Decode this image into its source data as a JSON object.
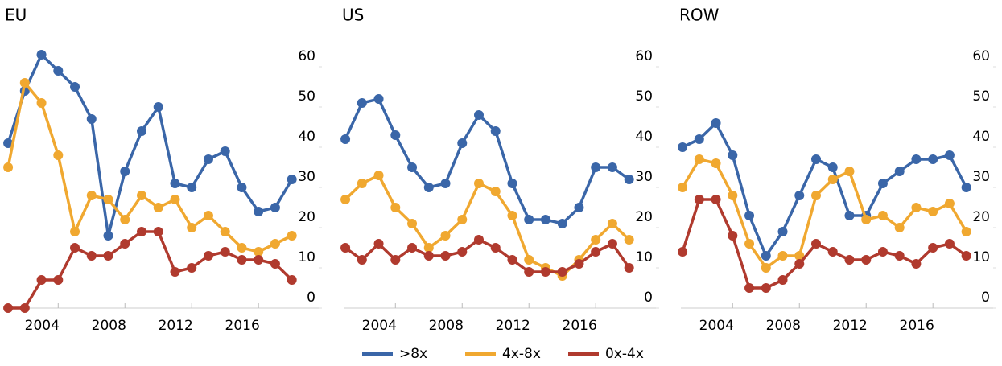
{
  "chart_data": [
    {
      "type": "line",
      "title": "EU",
      "x": [
        2001,
        2002,
        2003,
        2004,
        2005,
        2006,
        2007,
        2008,
        2009,
        2010,
        2011,
        2012,
        2013,
        2014,
        2015,
        2016,
        2017,
        2018
      ],
      "xlim": [
        2000.9,
        2019.8
      ],
      "xticks": [
        2004,
        2008,
        2012,
        2016
      ],
      "ylim": [
        0,
        69
      ],
      "yticks": [
        0,
        10,
        20,
        30,
        40,
        50,
        60
      ],
      "series": [
        {
          "name": ">8x",
          "color": "#3a66a8",
          "values": [
            41,
            54,
            63,
            59,
            55,
            47,
            18,
            34,
            44,
            50,
            31,
            30,
            37,
            39,
            30,
            24,
            25,
            32
          ]
        },
        {
          "name": "4x-8x",
          "color": "#f0a830",
          "values": [
            35,
            56,
            51,
            38,
            19,
            28,
            27,
            22,
            28,
            25,
            27,
            20,
            23,
            19,
            15,
            14,
            16,
            18
          ]
        },
        {
          "name": "0x-4x",
          "color": "#b03a2e",
          "values": [
            0,
            0,
            7,
            7,
            15,
            13,
            13,
            16,
            19,
            19,
            9,
            10,
            13,
            14,
            12,
            12,
            11,
            7
          ]
        }
      ]
    },
    {
      "type": "line",
      "title": "US",
      "x": [
        2001,
        2002,
        2003,
        2004,
        2005,
        2006,
        2007,
        2008,
        2009,
        2010,
        2011,
        2012,
        2013,
        2014,
        2015,
        2016,
        2017,
        2018
      ],
      "xlim": [
        2000.9,
        2019.8
      ],
      "xticks": [
        2004,
        2008,
        2012,
        2016
      ],
      "ylim": [
        0,
        69
      ],
      "yticks": [
        0,
        10,
        20,
        30,
        40,
        50,
        60
      ],
      "series": [
        {
          "name": ">8x",
          "color": "#3a66a8",
          "values": [
            42,
            51,
            52,
            43,
            35,
            30,
            31,
            41,
            48,
            44,
            31,
            22,
            22,
            21,
            25,
            35,
            35,
            32
          ]
        },
        {
          "name": "4x-8x",
          "color": "#f0a830",
          "values": [
            27,
            31,
            33,
            25,
            21,
            15,
            18,
            22,
            31,
            29,
            23,
            12,
            10,
            8,
            12,
            17,
            21,
            17
          ]
        },
        {
          "name": "0x-4x",
          "color": "#b03a2e",
          "values": [
            15,
            12,
            16,
            12,
            15,
            13,
            13,
            14,
            17,
            15,
            12,
            9,
            9,
            9,
            11,
            14,
            16,
            10
          ]
        }
      ]
    },
    {
      "type": "line",
      "title": "ROW",
      "x": [
        2001,
        2002,
        2003,
        2004,
        2005,
        2006,
        2007,
        2008,
        2009,
        2010,
        2011,
        2012,
        2013,
        2014,
        2015,
        2016,
        2017,
        2018
      ],
      "xlim": [
        2000.9,
        2019.8
      ],
      "xticks": [
        2004,
        2008,
        2012,
        2016
      ],
      "ylim": [
        0,
        69
      ],
      "yticks": [
        0,
        10,
        20,
        30,
        40,
        50,
        60
      ],
      "series": [
        {
          "name": ">8x",
          "color": "#3a66a8",
          "values": [
            40,
            42,
            46,
            38,
            23,
            13,
            19,
            28,
            37,
            35,
            23,
            23,
            31,
            34,
            37,
            37,
            38,
            30
          ]
        },
        {
          "name": "4x-8x",
          "color": "#f0a830",
          "values": [
            30,
            37,
            36,
            28,
            16,
            10,
            13,
            13,
            28,
            32,
            34,
            22,
            23,
            20,
            25,
            24,
            26,
            19
          ]
        },
        {
          "name": "0x-4x",
          "color": "#b03a2e",
          "values": [
            14,
            27,
            27,
            18,
            5,
            5,
            7,
            11,
            16,
            14,
            12,
            12,
            14,
            13,
            11,
            15,
            16,
            13
          ]
        }
      ]
    }
  ]
}
